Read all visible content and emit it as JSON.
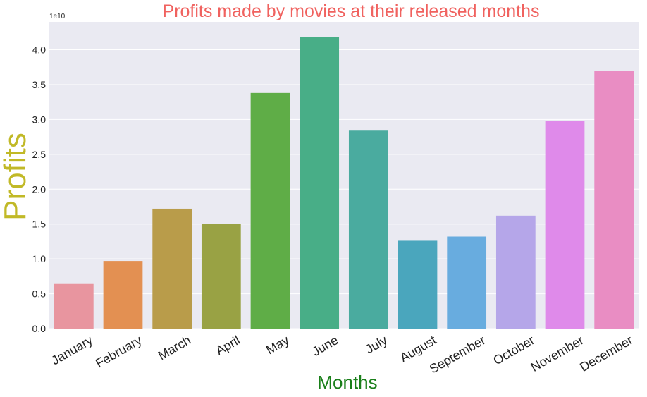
{
  "chart_data": {
    "type": "bar",
    "title": "Profits made by movies at their released months",
    "xlabel": "Months",
    "ylabel": "Profits",
    "y_offset_text": "1e10",
    "y_scale": 10000000000,
    "ylim": [
      0,
      4.4
    ],
    "yticks": [
      "0.0",
      "0.5",
      "1.0",
      "1.5",
      "2.0",
      "2.5",
      "3.0",
      "3.5",
      "4.0"
    ],
    "grid": true,
    "categories": [
      "January",
      "February",
      "March",
      "April",
      "May",
      "June",
      "July",
      "August",
      "September",
      "October",
      "November",
      "December"
    ],
    "values": [
      0.64,
      0.97,
      1.72,
      1.5,
      3.38,
      4.18,
      2.84,
      1.26,
      1.32,
      1.62,
      2.98,
      3.7
    ],
    "colors": [
      "#e8959f",
      "#e39052",
      "#b99c4a",
      "#99a244",
      "#5fad47",
      "#48ae87",
      "#4aab9f",
      "#4aa6bd",
      "#68acdf",
      "#b5a6e9",
      "#df8aea",
      "#e98dc3"
    ],
    "title_color": "#f0625f",
    "xlabel_color": "#1a7f1a",
    "ylabel_color": "#c1b927",
    "background_color": "#eaeaf2"
  }
}
